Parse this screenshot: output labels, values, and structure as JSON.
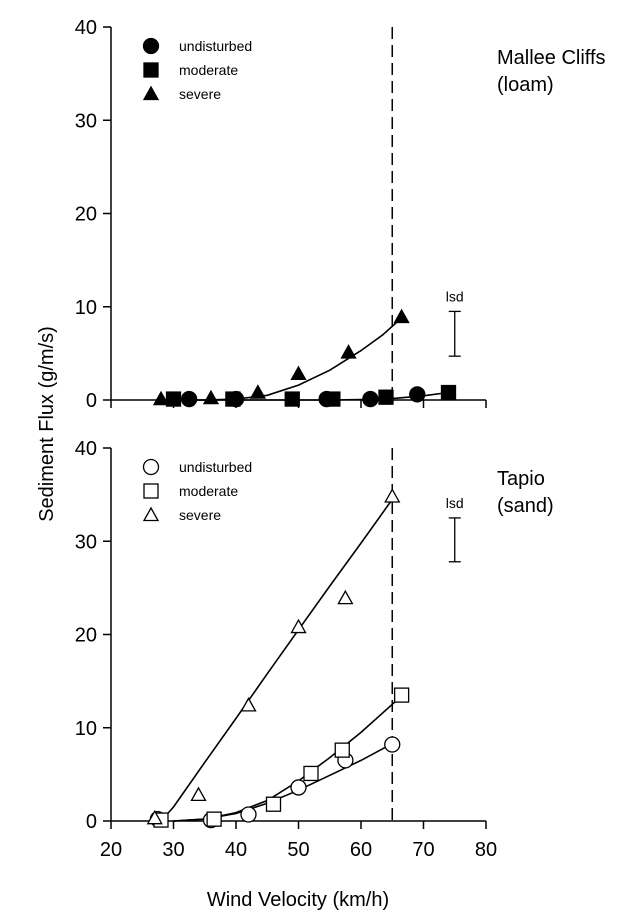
{
  "ylabel": "Sediment Flux (g/m/s)",
  "xlabel": "Wind Velocity (km/h)",
  "chart_data": [
    {
      "type": "scatter",
      "site": [
        "Mallee Cliffs",
        "(loam)"
      ],
      "xlim": [
        20,
        80
      ],
      "ylim": [
        0,
        40
      ],
      "xticks": [
        "20",
        "30",
        "40",
        "50",
        "60",
        "70",
        "80"
      ],
      "yticks": [
        "0",
        "10",
        "20",
        "30",
        "40"
      ],
      "show_xticklabels": false,
      "reference_x": 65,
      "lsd": {
        "label": "lsd",
        "x": 75,
        "y_low": 4.7,
        "y_high": 9.5
      },
      "legend": {
        "position": "top-left",
        "entries": [
          "undisturbed",
          "moderate",
          "severe"
        ]
      },
      "series": [
        {
          "name": "undisturbed",
          "marker": "circle",
          "filled": true,
          "points": [
            [
              32.5,
              0.1
            ],
            [
              40,
              0.1
            ],
            [
              54.5,
              0.1
            ],
            [
              61.5,
              0.1
            ],
            [
              69,
              0.6
            ]
          ],
          "curve": [
            [
              28,
              0.0
            ],
            [
              55,
              0.0
            ],
            [
              60,
              0.05
            ],
            [
              65,
              0.15
            ],
            [
              70,
              0.45
            ],
            [
              74,
              0.8
            ]
          ]
        },
        {
          "name": "moderate",
          "marker": "square",
          "filled": true,
          "points": [
            [
              30,
              0.1
            ],
            [
              39.5,
              0.1
            ],
            [
              49,
              0.1
            ],
            [
              55.5,
              0.1
            ],
            [
              64,
              0.3
            ],
            [
              74,
              0.8
            ]
          ],
          "curve": []
        },
        {
          "name": "severe",
          "marker": "triangle",
          "filled": true,
          "points": [
            [
              28,
              0.1
            ],
            [
              36,
              0.2
            ],
            [
              43.5,
              0.8
            ],
            [
              50,
              2.8
            ],
            [
              58,
              5.1
            ],
            [
              66.5,
              8.9
            ]
          ],
          "curve": [
            [
              28,
              0.0
            ],
            [
              35,
              0.0
            ],
            [
              40,
              0.1
            ],
            [
              45,
              0.5
            ],
            [
              50,
              1.6
            ],
            [
              55,
              3.2
            ],
            [
              60,
              5.3
            ],
            [
              63.5,
              7.0
            ],
            [
              66.5,
              8.8
            ]
          ]
        }
      ]
    },
    {
      "type": "scatter",
      "site": [
        "Tapio",
        "(sand)"
      ],
      "xlim": [
        20,
        80
      ],
      "ylim": [
        0,
        40
      ],
      "xticks": [
        "20",
        "30",
        "40",
        "50",
        "60",
        "70",
        "80"
      ],
      "yticks": [
        "0",
        "10",
        "20",
        "30",
        "40"
      ],
      "show_xticklabels": true,
      "reference_x": 65,
      "lsd": {
        "label": "lsd",
        "x": 75,
        "y_low": 27.8,
        "y_high": 32.5
      },
      "legend": {
        "position": "top-left",
        "entries": [
          "undisturbed",
          "moderate",
          "severe"
        ]
      },
      "series": [
        {
          "name": "undisturbed",
          "marker": "circle",
          "filled": false,
          "points": [
            [
              27.5,
              0.2
            ],
            [
              36,
              0.1
            ],
            [
              42,
              0.7
            ],
            [
              50,
              3.6
            ],
            [
              57.5,
              6.5
            ],
            [
              65,
              8.2
            ]
          ],
          "curve": [
            [
              30,
              0.0
            ],
            [
              35,
              0.2
            ],
            [
              40,
              0.8
            ],
            [
              45,
              1.9
            ],
            [
              50,
              3.3
            ],
            [
              55,
              4.9
            ],
            [
              60,
              6.5
            ],
            [
              65,
              8.3
            ]
          ]
        },
        {
          "name": "moderate",
          "marker": "square",
          "filled": false,
          "points": [
            [
              28,
              0.1
            ],
            [
              36.5,
              0.2
            ],
            [
              46,
              1.8
            ],
            [
              52,
              5.1
            ],
            [
              57,
              7.6
            ],
            [
              66.5,
              13.5
            ]
          ],
          "curve": [
            [
              30,
              0.0
            ],
            [
              35,
              0.2
            ],
            [
              40,
              0.9
            ],
            [
              45,
              2.2
            ],
            [
              50,
              4.3
            ],
            [
              55,
              6.8
            ],
            [
              60,
              9.5
            ],
            [
              66.5,
              13.4
            ]
          ]
        },
        {
          "name": "severe",
          "marker": "triangle",
          "filled": false,
          "points": [
            [
              27,
              0.3
            ],
            [
              34,
              2.8
            ],
            [
              42,
              12.4
            ],
            [
              50,
              20.8
            ],
            [
              57.5,
              23.9
            ],
            [
              65,
              34.8
            ]
          ],
          "curve": [
            [
              28,
              0.0
            ],
            [
              30,
              1.5
            ],
            [
              35,
              6.3
            ],
            [
              40,
              11.0
            ],
            [
              45,
              15.8
            ],
            [
              50,
              20.5
            ],
            [
              55,
              25.2
            ],
            [
              60,
              29.8
            ],
            [
              65,
              34.5
            ]
          ]
        }
      ]
    }
  ]
}
